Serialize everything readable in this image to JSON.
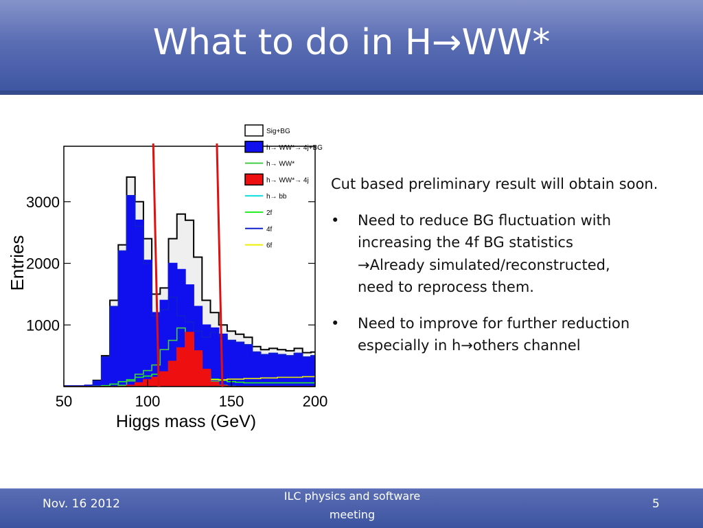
{
  "slide": {
    "title_prefix": "What to do in H",
    "title_arrow": "→",
    "title_suffix": "WW*",
    "footer_date": "Nov. 16 2012",
    "footer_center": "ILC physics and software meeting",
    "page_number": "5",
    "colors": {
      "title_bar": "#5a6db4",
      "footer_bar": "#3c54a0",
      "cut_lines": "#e01010"
    }
  },
  "bullets": {
    "intro": "Cut based preliminary result will obtain soon.",
    "item1_line1": "Need to reduce BG fluctuation with",
    "item1_line2": "increasing the 4f BG statistics",
    "item1_arrow": "→",
    "item1_line3": "Already simulated/reconstructed,",
    "item1_line4": "need to reprocess them.",
    "item2_line1": "Need to improve for further reduction",
    "item2_line2_prefix": "especially in h",
    "item2_arrow": "→",
    "item2_line2_suffix": "others channel",
    "bullet_char": "•"
  },
  "chart_data": {
    "type": "area",
    "xlabel": "Higgs mass (GeV)",
    "ylabel": "Entries",
    "xlim": [
      50,
      200
    ],
    "ylim": [
      0,
      3900
    ],
    "xticks": [
      50,
      100,
      150,
      200
    ],
    "yticks": [
      1000,
      2000,
      3000
    ],
    "x": [
      50,
      55,
      60,
      65,
      70,
      75,
      80,
      85,
      90,
      95,
      100,
      105,
      110,
      115,
      120,
      125,
      130,
      135,
      140,
      145,
      150,
      155,
      160,
      165,
      170,
      175,
      180,
      185,
      190,
      195,
      200
    ],
    "cut_lines": [
      105,
      143
    ],
    "legend_position": "top-right",
    "legend": [
      {
        "label": "Sig+BG",
        "style": "box",
        "color": "#000000",
        "fill": "#ffffff"
      },
      {
        "label": "h→ WW*→ 4j+BG",
        "style": "box",
        "color": "#1010ee",
        "fill": "#1010ee"
      },
      {
        "label": "h→ WW*",
        "style": "line",
        "color": "#44cc44"
      },
      {
        "label": "h→ WW*→ 4j",
        "style": "box",
        "color": "#ee1010",
        "fill": "#ee1010"
      },
      {
        "label": "h→ bb",
        "style": "line",
        "color": "#00dddd"
      },
      {
        "label": "2f",
        "style": "line",
        "color": "#22ee22"
      },
      {
        "label": "4f",
        "style": "line",
        "color": "#1020cc"
      },
      {
        "label": "6f",
        "style": "line",
        "color": "#eeee00"
      }
    ],
    "series": [
      {
        "name": "Sig+BG",
        "color": "#000000",
        "values": [
          10,
          10,
          10,
          20,
          100,
          500,
          1400,
          2300,
          3400,
          3000,
          2400,
          1500,
          1600,
          2400,
          2800,
          2700,
          2100,
          1400,
          1200,
          1000,
          900,
          850,
          800,
          650,
          600,
          620,
          600,
          580,
          620,
          550,
          560
        ]
      },
      {
        "name": "h→ WW*→ 4j+BG",
        "color": "#1010ee",
        "values": [
          10,
          10,
          10,
          20,
          90,
          480,
          1300,
          2200,
          3100,
          2700,
          2050,
          1200,
          1400,
          2000,
          1900,
          1650,
          1300,
          1000,
          950,
          850,
          750,
          720,
          680,
          560,
          520,
          540,
          520,
          500,
          540,
          480,
          500
        ]
      },
      {
        "name": "h→ WW*",
        "color": "#44cc44",
        "values": [
          0,
          0,
          0,
          0,
          0,
          0,
          0,
          20,
          90,
          200,
          260,
          350,
          600,
          750,
          950,
          760,
          520,
          250,
          80,
          20,
          5,
          0,
          0,
          0,
          0,
          0,
          0,
          0,
          0,
          0,
          0
        ]
      },
      {
        "name": "h→ WW*→ 4j",
        "color": "#ee1010",
        "values": [
          0,
          0,
          0,
          0,
          0,
          0,
          0,
          0,
          20,
          60,
          110,
          150,
          240,
          410,
          630,
          880,
          580,
          280,
          70,
          15,
          0,
          0,
          0,
          0,
          0,
          0,
          0,
          0,
          0,
          0,
          0
        ]
      },
      {
        "name": "h→ bb",
        "color": "#00dddd",
        "values": [
          0,
          0,
          0,
          0,
          0,
          0,
          0,
          0,
          0,
          0,
          0,
          10,
          30,
          70,
          100,
          70,
          40,
          10,
          0,
          0,
          0,
          0,
          0,
          0,
          0,
          0,
          0,
          0,
          0,
          0,
          0
        ]
      },
      {
        "name": "2f",
        "color": "#22ee22",
        "values": [
          0,
          0,
          0,
          0,
          5,
          15,
          40,
          80,
          110,
          150,
          170,
          200,
          220,
          230,
          250,
          240,
          200,
          160,
          120,
          100,
          80,
          70,
          60,
          60,
          60,
          60,
          60,
          60,
          60,
          60,
          60
        ]
      },
      {
        "name": "4f",
        "color": "#1020cc",
        "values": [
          0,
          0,
          0,
          0,
          90,
          480,
          1300,
          2200,
          3100,
          2600,
          2000,
          1150,
          1250,
          1450,
          1150,
          1050,
          900,
          800,
          880,
          820,
          750,
          720,
          680,
          560,
          520,
          540,
          520,
          500,
          540,
          480,
          500
        ]
      },
      {
        "name": "6f",
        "color": "#eeee00",
        "values": [
          0,
          0,
          0,
          0,
          0,
          0,
          0,
          0,
          10,
          20,
          30,
          40,
          50,
          60,
          70,
          80,
          90,
          100,
          110,
          110,
          120,
          120,
          130,
          130,
          140,
          140,
          150,
          150,
          150,
          160,
          160
        ]
      }
    ]
  }
}
